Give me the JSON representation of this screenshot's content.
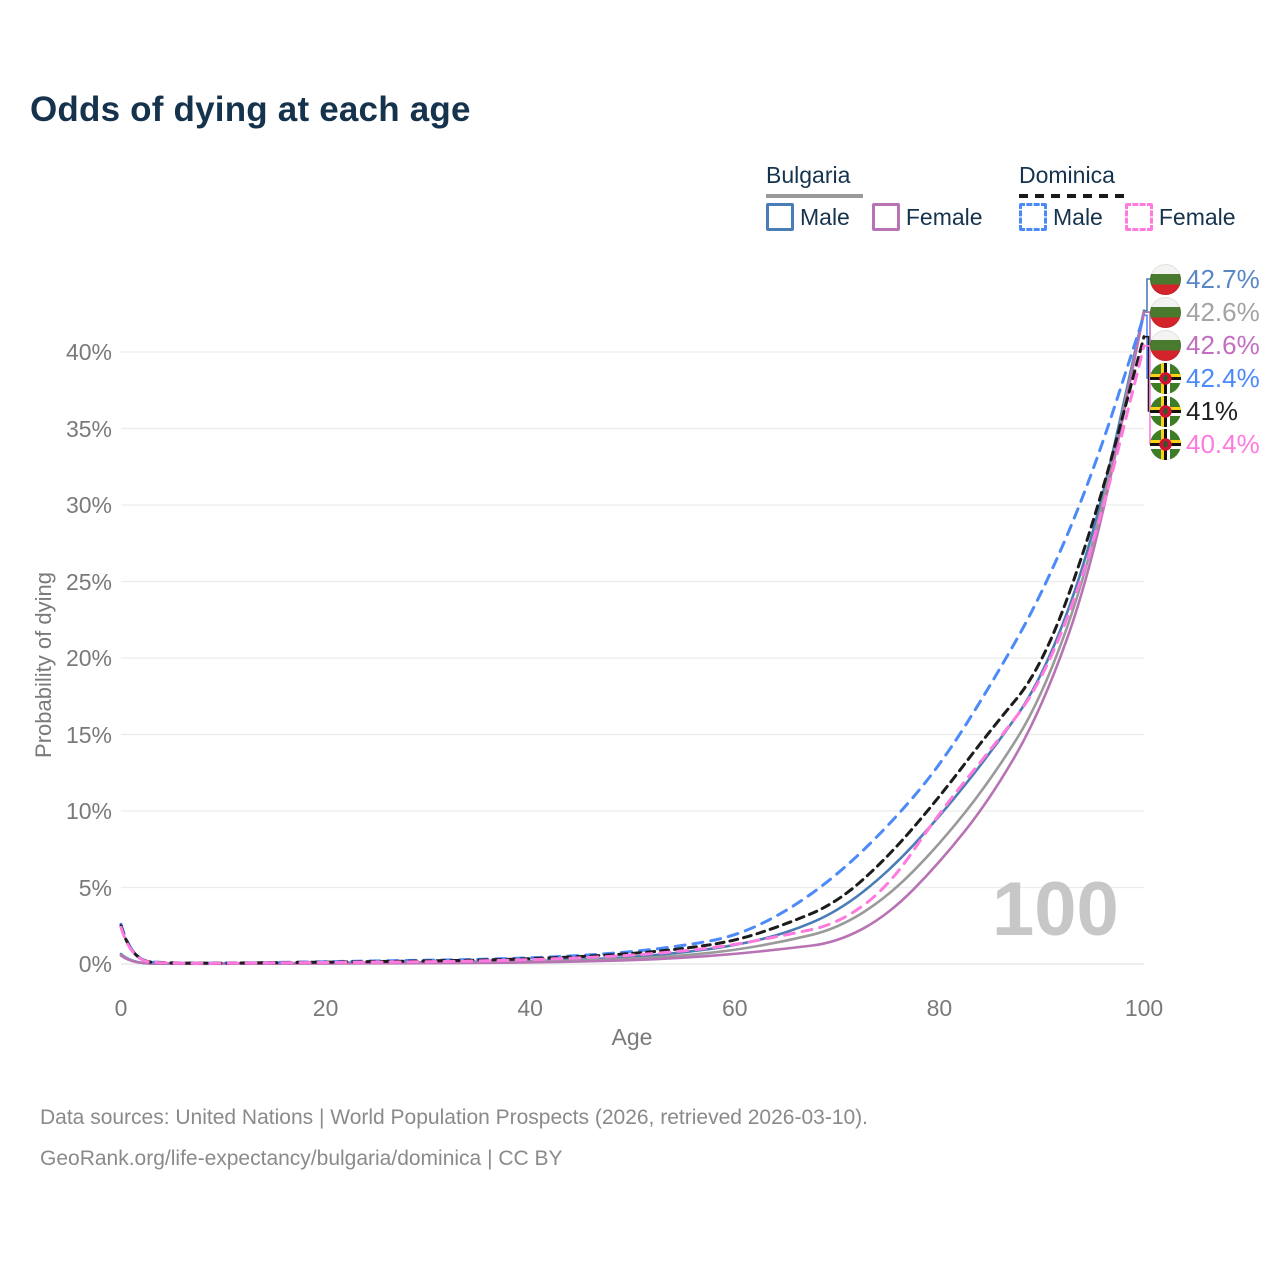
{
  "title": "Odds of dying at each age",
  "legend": {
    "groups": [
      {
        "name": "Bulgaria",
        "line_style": "solid",
        "line_color": "#9a9a9a",
        "items": [
          {
            "label": "Male",
            "color": "#4a7db5",
            "style": "solid"
          },
          {
            "label": "Female",
            "color": "#b873b5",
            "style": "solid"
          }
        ]
      },
      {
        "name": "Dominica",
        "line_style": "dashed",
        "line_color": "#1a1a1a",
        "items": [
          {
            "label": "Male",
            "color": "#4b8af8",
            "style": "dashed"
          },
          {
            "label": "Female",
            "color": "#ff7ade",
            "style": "dashed"
          }
        ]
      }
    ]
  },
  "chart_data": {
    "type": "line",
    "title": "Odds of dying at each age",
    "xlabel": "Age",
    "ylabel": "Probability of dying",
    "x_ticks": [
      0,
      20,
      40,
      60,
      80,
      100
    ],
    "y_ticks": [
      "0%",
      "5%",
      "10%",
      "15%",
      "20%",
      "25%",
      "30%",
      "35%",
      "40%"
    ],
    "xlim": [
      0,
      100
    ],
    "ylim": [
      0,
      44
    ],
    "grid": "horizontal",
    "legend_position": "top-right",
    "watermark": "100",
    "x": [
      0,
      1,
      5,
      10,
      15,
      20,
      25,
      30,
      35,
      40,
      45,
      50,
      55,
      60,
      65,
      70,
      75,
      80,
      85,
      90,
      95,
      100
    ],
    "series": [
      {
        "name": "Bulgaria Male",
        "country": "Bulgaria",
        "group": "Male",
        "color": "#4a7db5",
        "dash": "solid",
        "end_label": "42.7%",
        "label_color": "#5a86c5",
        "flag": "bulgaria",
        "values": [
          0.65,
          0.05,
          0.02,
          0.02,
          0.04,
          0.07,
          0.09,
          0.11,
          0.14,
          0.19,
          0.28,
          0.45,
          0.75,
          1.2,
          2.0,
          3.4,
          6.0,
          9.6,
          13.8,
          18.5,
          27.5,
          42.7
        ]
      },
      {
        "name": "Bulgaria Overall",
        "country": "Bulgaria",
        "group": "Overall",
        "color": "#9a9a9a",
        "dash": "solid",
        "end_label": "42.6%",
        "label_color": "#a3a3a3",
        "flag": "bulgaria",
        "values": [
          0.6,
          0.045,
          0.018,
          0.018,
          0.03,
          0.05,
          0.06,
          0.08,
          0.1,
          0.15,
          0.22,
          0.35,
          0.55,
          0.9,
          1.5,
          2.3,
          4.4,
          7.8,
          12.0,
          17.3,
          26.8,
          42.6
        ]
      },
      {
        "name": "Bulgaria Female",
        "country": "Bulgaria",
        "group": "Female",
        "color": "#b873b5",
        "dash": "solid",
        "end_label": "42.6%",
        "label_color": "#c36ec1",
        "flag": "bulgaria",
        "values": [
          0.55,
          0.04,
          0.015,
          0.015,
          0.025,
          0.03,
          0.04,
          0.05,
          0.07,
          0.1,
          0.16,
          0.25,
          0.4,
          0.65,
          1.0,
          1.4,
          3.2,
          6.6,
          10.8,
          16.6,
          26.0,
          42.6
        ]
      },
      {
        "name": "Dominica Male",
        "country": "Dominica",
        "group": "Male",
        "color": "#4b8af8",
        "dash": "dashed",
        "end_label": "42.4%",
        "label_color": "#4b8af8",
        "flag": "dominica",
        "values": [
          2.6,
          0.2,
          0.06,
          0.06,
          0.1,
          0.15,
          0.2,
          0.25,
          0.3,
          0.4,
          0.55,
          0.8,
          1.2,
          1.8,
          3.4,
          5.8,
          9.0,
          12.9,
          18.2,
          24.1,
          32.0,
          42.4
        ]
      },
      {
        "name": "Dominica Overall",
        "country": "Dominica",
        "group": "Overall",
        "color": "#1c1c1c",
        "dash": "dashed",
        "end_label": "41%",
        "label_color": "#222222",
        "flag": "dominica",
        "values": [
          2.5,
          0.19,
          0.055,
          0.055,
          0.09,
          0.12,
          0.16,
          0.2,
          0.25,
          0.34,
          0.48,
          0.68,
          1.0,
          1.5,
          2.6,
          4.0,
          7.0,
          10.9,
          15.3,
          19.3,
          28.5,
          41.0
        ]
      },
      {
        "name": "Dominica Female",
        "country": "Dominica",
        "group": "Female",
        "color": "#ff7ade",
        "dash": "dashed",
        "end_label": "40.4%",
        "label_color": "#ff7ade",
        "flag": "dominica",
        "values": [
          2.4,
          0.18,
          0.05,
          0.05,
          0.08,
          0.1,
          0.12,
          0.15,
          0.2,
          0.28,
          0.4,
          0.57,
          0.85,
          1.25,
          1.9,
          2.6,
          5.0,
          9.9,
          14.0,
          18.3,
          27.0,
          40.4
        ]
      }
    ]
  },
  "footer": {
    "line1": "Data sources: United Nations | World Population Prospects (2026, retrieved 2026-03-10).",
    "line2": "GeoRank.org/life-expectancy/bulgaria/dominica | CC BY"
  }
}
